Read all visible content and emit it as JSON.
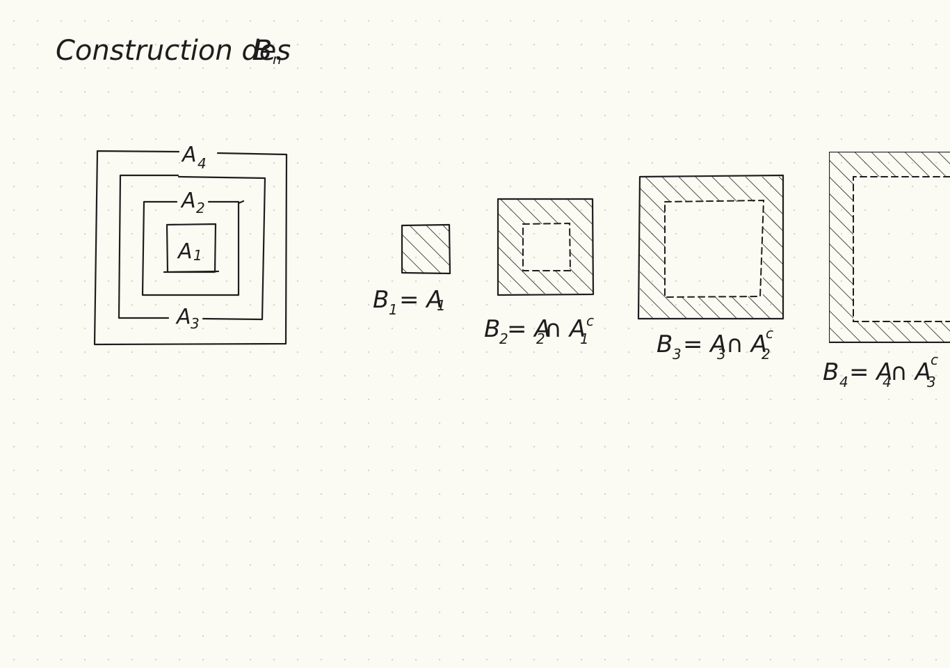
{
  "title": {
    "main": "Construction des",
    "symbol": "B",
    "sub": "n"
  },
  "nested_sets": [
    {
      "base": "A",
      "sub": "4"
    },
    {
      "base": "A",
      "sub": "2"
    },
    {
      "base": "A",
      "sub": "1"
    },
    {
      "base": "A",
      "sub": "3"
    }
  ],
  "equations": [
    {
      "lhs": "B",
      "lhs_sub": "1",
      "rhs": "= A",
      "rhs_sub": "1",
      "tail": "",
      "tail_sub": "",
      "tail_sup": ""
    },
    {
      "lhs": "B",
      "lhs_sub": "2",
      "rhs": "= A",
      "rhs_sub": "2",
      "tail": "∩ A",
      "tail_sub": "1",
      "tail_sup": "c"
    },
    {
      "lhs": "B",
      "lhs_sub": "3",
      "rhs": "= A",
      "rhs_sub": "3",
      "tail": "∩ A",
      "tail_sub": "2",
      "tail_sup": "c"
    },
    {
      "lhs": "B",
      "lhs_sub": "4",
      "rhs": "= A",
      "rhs_sub": "4",
      "tail": "∩ A",
      "tail_sub": "3",
      "tail_sup": "c"
    }
  ],
  "colors": {
    "ink": "#1d1d1d",
    "paper": "#fbfaf3",
    "dots": "#d6d6d0"
  }
}
